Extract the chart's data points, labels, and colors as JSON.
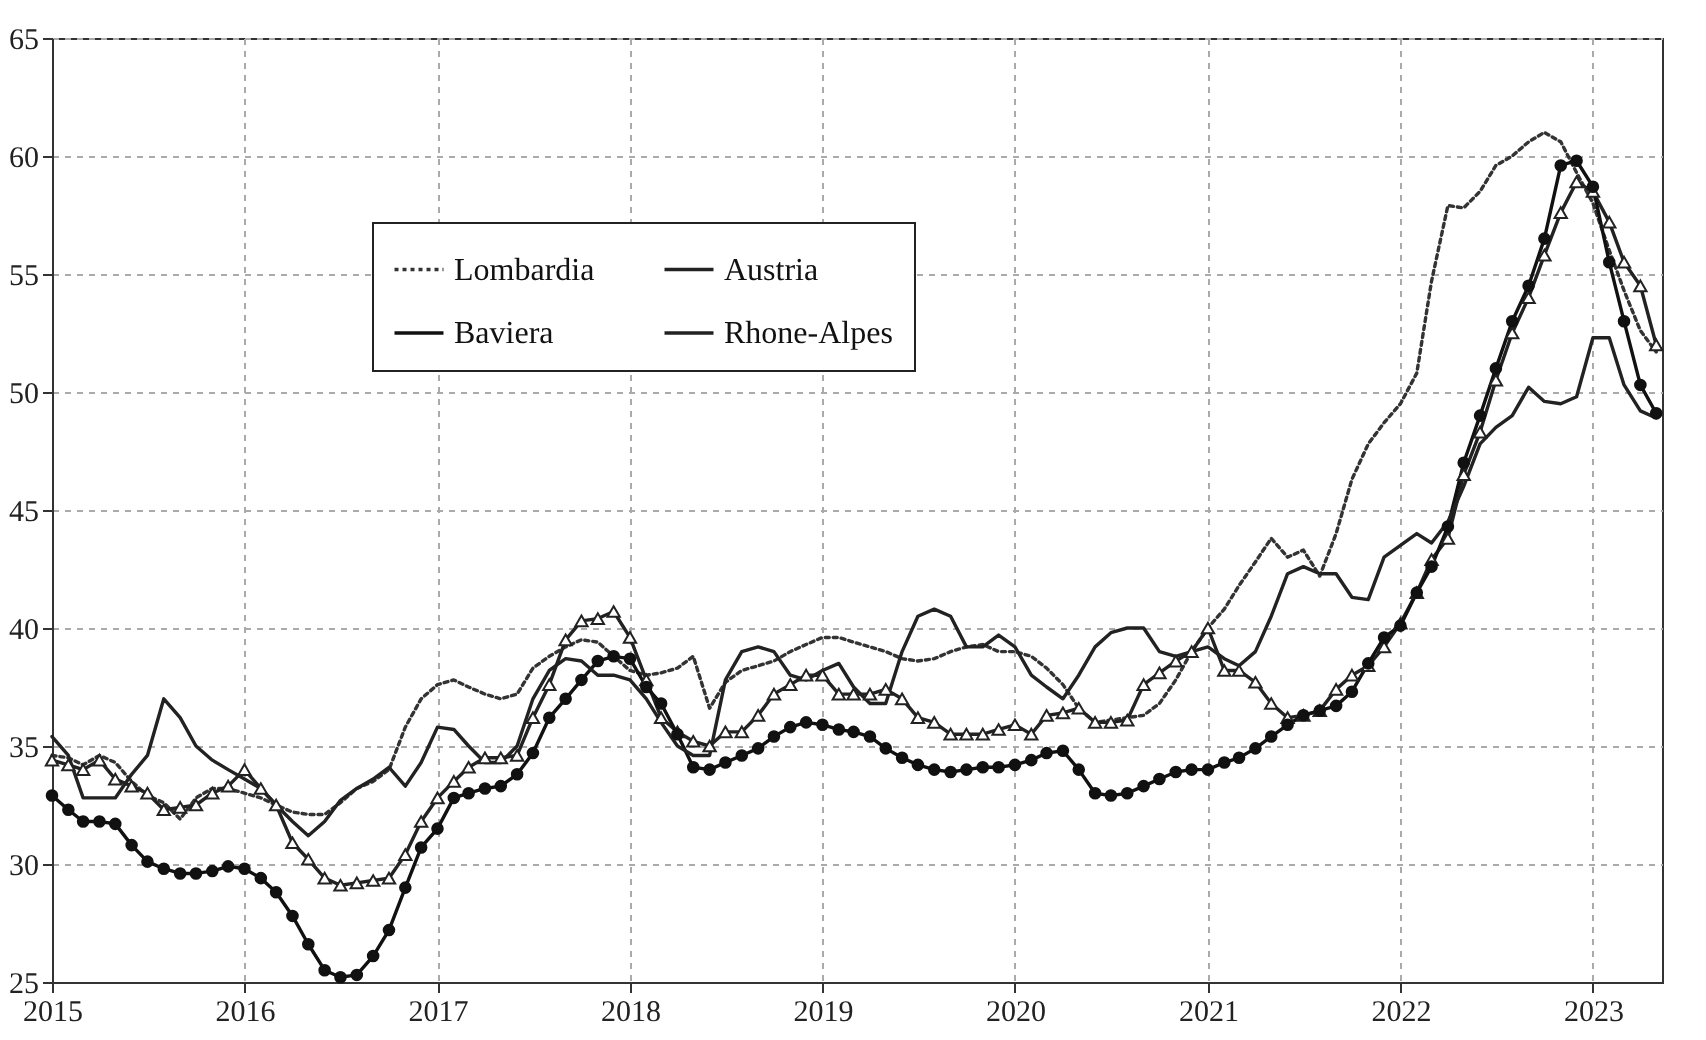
{
  "chart_data": {
    "type": "line",
    "x": [
      "2015-01",
      "2015-02",
      "2015-03",
      "2015-04",
      "2015-05",
      "2015-06",
      "2015-07",
      "2015-08",
      "2015-09",
      "2015-10",
      "2015-11",
      "2015-12",
      "2016-01",
      "2016-02",
      "2016-03",
      "2016-04",
      "2016-05",
      "2016-06",
      "2016-07",
      "2016-08",
      "2016-09",
      "2016-10",
      "2016-11",
      "2016-12",
      "2017-01",
      "2017-02",
      "2017-03",
      "2017-04",
      "2017-05",
      "2017-06",
      "2017-07",
      "2017-08",
      "2017-09",
      "2017-10",
      "2017-11",
      "2017-12",
      "2018-01",
      "2018-02",
      "2018-03",
      "2018-04",
      "2018-05",
      "2018-06",
      "2018-07",
      "2018-08",
      "2018-09",
      "2018-10",
      "2018-11",
      "2018-12",
      "2019-01",
      "2019-02",
      "2019-03",
      "2019-04",
      "2019-05",
      "2019-06",
      "2019-07",
      "2019-08",
      "2019-09",
      "2019-10",
      "2019-11",
      "2019-12",
      "2020-01",
      "2020-02",
      "2020-03",
      "2020-04",
      "2020-05",
      "2020-06",
      "2020-07",
      "2020-08",
      "2020-09",
      "2020-10",
      "2020-11",
      "2020-12",
      "2021-01",
      "2021-02",
      "2021-03",
      "2021-04",
      "2021-05",
      "2021-06",
      "2021-07",
      "2021-08",
      "2021-09",
      "2021-10",
      "2021-11",
      "2021-12",
      "2022-01",
      "2022-02",
      "2022-03",
      "2022-04",
      "2022-05",
      "2022-06",
      "2022-07",
      "2022-08",
      "2022-09",
      "2022-10",
      "2022-11",
      "2022-12",
      "2023-01",
      "2023-02",
      "2023-03",
      "2023-04",
      "2023-05"
    ],
    "series": [
      {
        "name": "Lombardia",
        "color": "#333333",
        "line_style": "dotted",
        "marker": "none",
        "values": [
          34.6,
          34.5,
          34.2,
          34.6,
          34.3,
          33.5,
          32.9,
          32.6,
          31.9,
          32.8,
          33.2,
          33.2,
          33.0,
          32.8,
          32.5,
          32.2,
          32.1,
          32.1,
          32.6,
          33.2,
          33.5,
          34.0,
          35.8,
          37.0,
          37.6,
          37.8,
          37.5,
          37.2,
          37.0,
          37.2,
          38.3,
          38.8,
          39.2,
          39.5,
          39.4,
          38.8,
          38.2,
          38.0,
          38.1,
          38.3,
          38.8,
          36.6,
          37.7,
          38.2,
          38.4,
          38.6,
          39.0,
          39.3,
          39.6,
          39.6,
          39.4,
          39.2,
          39.0,
          38.7,
          38.6,
          38.7,
          39.0,
          39.2,
          39.3,
          39.0,
          39.0,
          38.8,
          38.3,
          37.6,
          36.6,
          36.0,
          36.1,
          36.2,
          36.3,
          36.8,
          37.8,
          39.0,
          40.0,
          40.8,
          41.8,
          42.8,
          43.8,
          43.0,
          43.3,
          42.2,
          44.0,
          46.3,
          47.8,
          48.7,
          49.5,
          50.8,
          54.7,
          57.9,
          57.8,
          58.5,
          59.6,
          60.0,
          60.6,
          61.0,
          60.6,
          59.3,
          58.0,
          56.0,
          54.3,
          52.6,
          51.7
        ]
      },
      {
        "name": "Austria",
        "color": "#222222",
        "line_style": "solid",
        "marker": "triangle",
        "values": [
          34.4,
          34.2,
          34.0,
          34.4,
          33.6,
          33.3,
          33.0,
          32.3,
          32.4,
          32.5,
          33.0,
          33.3,
          34.0,
          33.2,
          32.5,
          30.9,
          30.2,
          29.4,
          29.1,
          29.2,
          29.3,
          29.4,
          30.4,
          31.8,
          32.8,
          33.5,
          34.1,
          34.5,
          34.5,
          34.6,
          36.2,
          37.6,
          39.5,
          40.3,
          40.4,
          40.7,
          39.6,
          37.8,
          36.2,
          35.6,
          35.2,
          35.0,
          35.6,
          35.6,
          36.3,
          37.2,
          37.6,
          38.0,
          38.0,
          37.2,
          37.2,
          37.2,
          37.4,
          37.0,
          36.2,
          36.0,
          35.5,
          35.5,
          35.5,
          35.7,
          35.9,
          35.5,
          36.3,
          36.4,
          36.6,
          36.0,
          36.0,
          36.1,
          37.6,
          38.1,
          38.6,
          39.0,
          40.0,
          38.2,
          38.2,
          37.7,
          36.8,
          36.2,
          36.3,
          36.5,
          37.4,
          38.0,
          38.4,
          39.2,
          40.2,
          41.5,
          42.9,
          43.8,
          46.5,
          48.3,
          50.5,
          52.5,
          54.0,
          55.8,
          57.6,
          58.9,
          58.5,
          57.2,
          55.5,
          54.5,
          52.0
        ]
      },
      {
        "name": "Baviera",
        "color": "#111111",
        "line_style": "solid",
        "marker": "circle",
        "values": [
          32.9,
          32.3,
          31.8,
          31.8,
          31.7,
          30.8,
          30.1,
          29.8,
          29.6,
          29.6,
          29.7,
          29.9,
          29.8,
          29.4,
          28.8,
          27.8,
          26.6,
          25.5,
          25.2,
          25.3,
          26.1,
          27.2,
          29.0,
          30.7,
          31.5,
          32.8,
          33.0,
          33.2,
          33.3,
          33.8,
          34.7,
          36.2,
          37.0,
          37.8,
          38.6,
          38.8,
          38.7,
          37.5,
          36.8,
          35.5,
          34.1,
          34.0,
          34.3,
          34.6,
          34.9,
          35.4,
          35.8,
          36.0,
          35.9,
          35.7,
          35.6,
          35.4,
          34.9,
          34.5,
          34.2,
          34.0,
          33.9,
          34.0,
          34.1,
          34.1,
          34.2,
          34.4,
          34.7,
          34.8,
          34.0,
          33.0,
          32.9,
          33.0,
          33.3,
          33.6,
          33.9,
          34.0,
          34.0,
          34.3,
          34.5,
          34.9,
          35.4,
          35.9,
          36.3,
          36.5,
          36.7,
          37.3,
          38.5,
          39.6,
          40.1,
          41.5,
          42.6,
          44.3,
          47.0,
          49.0,
          51.0,
          53.0,
          54.5,
          56.5,
          59.6,
          59.8,
          58.7,
          55.5,
          53.0,
          50.3,
          49.1
        ]
      },
      {
        "name": "Rhone-Alpes",
        "color": "#222222",
        "line_style": "solid",
        "marker": "none",
        "values": [
          35.4,
          34.6,
          32.8,
          32.8,
          32.8,
          33.8,
          34.6,
          37.0,
          36.2,
          35.0,
          34.4,
          34.0,
          33.6,
          33.2,
          32.5,
          31.8,
          31.2,
          31.8,
          32.7,
          33.2,
          33.6,
          34.1,
          33.3,
          34.3,
          35.8,
          35.7,
          35.0,
          34.3,
          34.3,
          35.0,
          37.0,
          38.2,
          38.7,
          38.6,
          38.0,
          38.0,
          37.8,
          37.0,
          36.0,
          35.0,
          34.6,
          34.6,
          37.8,
          39.0,
          39.2,
          39.0,
          38.0,
          37.8,
          38.2,
          38.5,
          37.5,
          36.8,
          36.8,
          39.0,
          40.5,
          40.8,
          40.5,
          39.2,
          39.2,
          39.7,
          39.2,
          38.0,
          37.5,
          37.0,
          38.0,
          39.2,
          39.8,
          40.0,
          40.0,
          39.0,
          38.8,
          39.0,
          39.2,
          38.7,
          38.4,
          39.0,
          40.5,
          42.3,
          42.6,
          42.3,
          42.3,
          41.3,
          41.2,
          43.0,
          43.5,
          44.0,
          43.6,
          44.5,
          46.0,
          47.8,
          48.5,
          49.0,
          50.2,
          49.6,
          49.5,
          49.8,
          52.3,
          52.3,
          50.3,
          49.2,
          48.9
        ]
      }
    ],
    "xlim": [
      "2015-01-01",
      "2023-05-12"
    ],
    "xticks": [
      "2015",
      "2016",
      "2017",
      "2018",
      "2019",
      "2020",
      "2021",
      "2022",
      "2023"
    ],
    "ylim": [
      25,
      65
    ],
    "yticks": [
      25,
      30,
      35,
      40,
      45,
      50,
      55,
      60,
      65
    ],
    "grid": true,
    "legend": "top left"
  }
}
